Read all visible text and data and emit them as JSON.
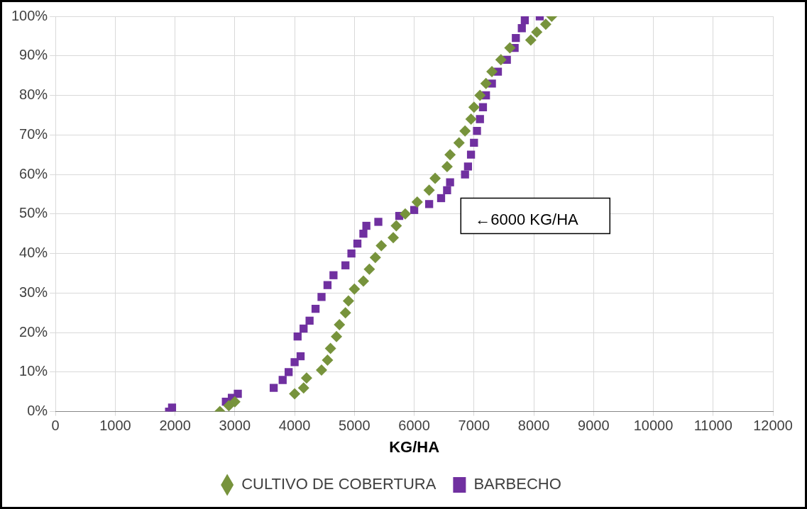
{
  "chart_data": {
    "type": "scatter",
    "xlabel": "KG/HA",
    "xlim": [
      0,
      12000
    ],
    "xticks": [
      0,
      1000,
      2000,
      3000,
      4000,
      5000,
      6000,
      7000,
      8000,
      9000,
      10000,
      11000,
      12000
    ],
    "ylim": [
      0,
      100
    ],
    "yticks": [
      {
        "value": 0,
        "label": "0%"
      },
      {
        "value": 10,
        "label": "10%"
      },
      {
        "value": 20,
        "label": "20%"
      },
      {
        "value": 30,
        "label": "30%"
      },
      {
        "value": 40,
        "label": "40%"
      },
      {
        "value": 50,
        "label": "50%"
      },
      {
        "value": 60,
        "label": "60%"
      },
      {
        "value": 70,
        "label": "70%"
      },
      {
        "value": 80,
        "label": "80%"
      },
      {
        "value": 90,
        "label": "90%"
      },
      {
        "value": 100,
        "label": "100%"
      }
    ],
    "grid": true,
    "legend": "bottom",
    "annotations": [
      "←6000 KG/HA"
    ],
    "series": [
      {
        "name": "CULTIVO DE COBERTURA",
        "color": "#77933c",
        "marker": "diamond",
        "x": [
          2750,
          2900,
          3000,
          4000,
          4150,
          4200,
          4450,
          4550,
          4600,
          4700,
          4750,
          4850,
          4900,
          5000,
          5150,
          5250,
          5350,
          5450,
          5650,
          5700,
          5850,
          6050,
          6250,
          6350,
          6550,
          6600,
          6750,
          6850,
          6950,
          7000,
          7100,
          7200,
          7300,
          7450,
          7600,
          7950,
          8050,
          8200,
          8300
        ],
        "values": [
          0,
          1.5,
          2.5,
          4.5,
          6,
          8.5,
          10.5,
          13,
          16,
          19,
          22,
          25,
          28,
          31,
          33,
          36,
          39,
          42,
          44,
          47,
          50,
          53,
          56,
          59,
          62,
          65,
          68,
          71,
          74,
          77,
          80,
          83,
          86,
          89,
          92,
          94,
          96,
          98,
          100
        ]
      },
      {
        "name": "BARBECHO",
        "color": "#7030a0",
        "marker": "square",
        "x": [
          1900,
          1950,
          2850,
          2950,
          3050,
          3650,
          3800,
          3900,
          4000,
          4100,
          4050,
          4150,
          4250,
          4350,
          4450,
          4550,
          4650,
          4850,
          4950,
          5050,
          5150,
          5200,
          5400,
          5750,
          6000,
          6250,
          6450,
          6550,
          6600,
          6850,
          6900,
          6950,
          7000,
          7050,
          7100,
          7150,
          7200,
          7300,
          7400,
          7550,
          7680,
          7700,
          7800,
          7850,
          8100
        ],
        "values": [
          0,
          1,
          2.5,
          3.5,
          4.5,
          6,
          8,
          10,
          12.5,
          14,
          19,
          21,
          23,
          26,
          29,
          32,
          34.5,
          37,
          40,
          42.5,
          45,
          47,
          48,
          49.5,
          51,
          52.5,
          54,
          56,
          58,
          60,
          62,
          65,
          68,
          71,
          74,
          77,
          80,
          83,
          86,
          89,
          92,
          94.5,
          97,
          99,
          100
        ]
      }
    ]
  }
}
